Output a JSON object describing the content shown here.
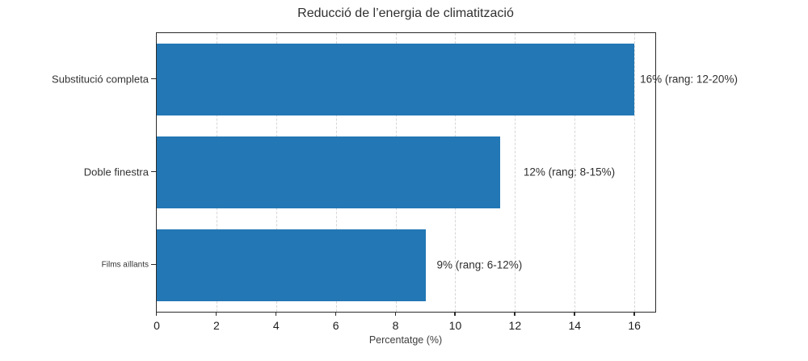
{
  "chart_data": {
    "type": "bar",
    "orientation": "horizontal",
    "title": "Reducció de l’energia de climatització",
    "xlabel": "Percentatge (%)",
    "categories": [
      "Substitució completa",
      "Doble finestra",
      "Films aïllants"
    ],
    "values": [
      16,
      11.5,
      9
    ],
    "bar_labels": [
      "16% (rang: 12-20%)",
      "12% (rang: 8-15%)",
      "9% (rang: 6-12%)"
    ],
    "xticks": [
      0,
      2,
      4,
      6,
      8,
      10,
      12,
      14,
      16
    ],
    "xlim": [
      0,
      16.7
    ],
    "grid": "vertical-dashed",
    "legend": null,
    "colors": {
      "bar": "#2277b4",
      "grid": "#d6d6d6",
      "spine": "#2b2b2b",
      "text": "#2e2e2e"
    }
  }
}
